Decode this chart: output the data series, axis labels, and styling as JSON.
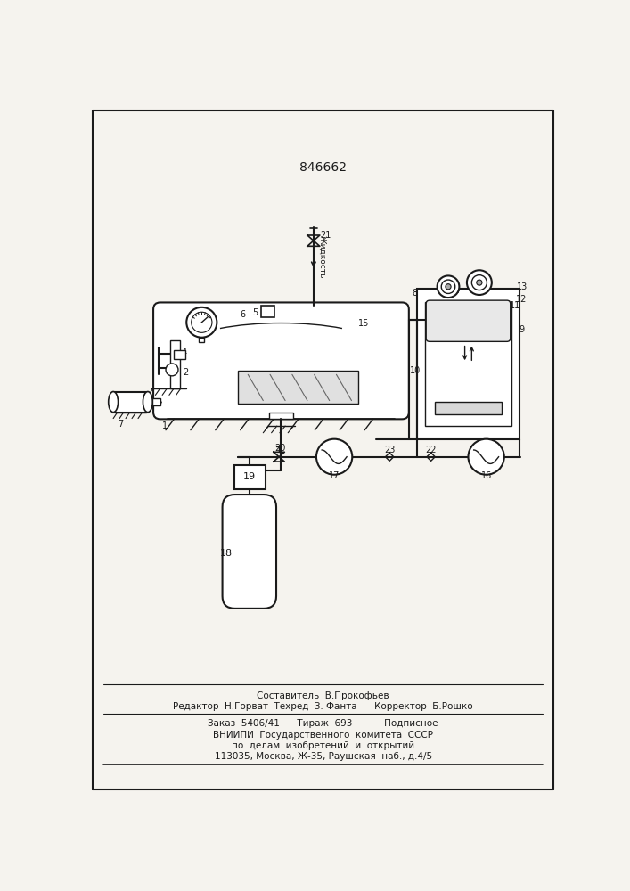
{
  "patent_number": "846662",
  "bg": "#f5f3ee",
  "lc": "#1a1a1a",
  "footer_lines": [
    "Составитель  В.Прокофьев",
    "Редактор  Н.Горват  Техред  З. Фанта      Корректор  Б.Рошко",
    "Заказ  5406/41      Тираж  693           Подписное",
    "ВНИИПИ  Государственного  комитета  СССР",
    "по  делам  изобретений  и  открытий",
    "113035, Москва, Ж-35, Раушская  наб., д.4/5"
  ]
}
